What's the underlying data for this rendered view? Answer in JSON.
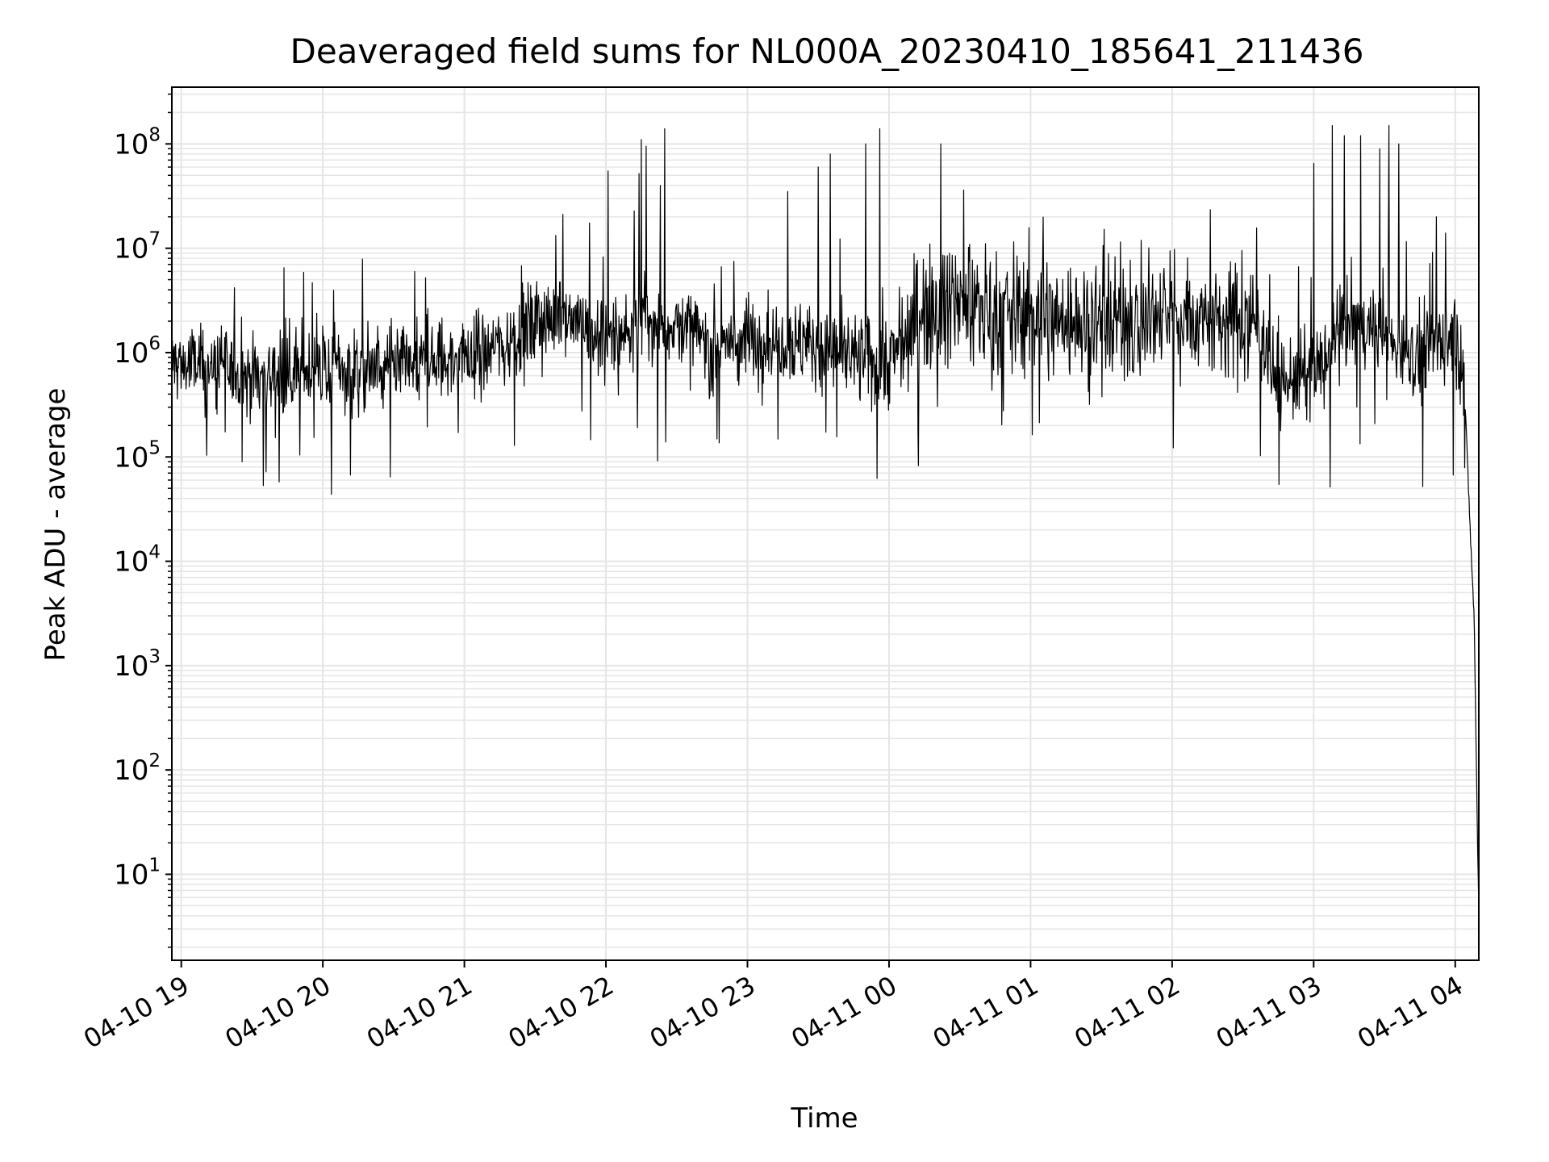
{
  "chart_data": {
    "type": "line",
    "title": "Deaveraged field sums for NL000A_20230410_185641_211436",
    "xlabel": "Time",
    "ylabel": "Peak ADU - average",
    "yscale": "log",
    "ylim": [
      1.5,
      350000000
    ],
    "xlim": [
      "2023-04-10 18:56",
      "2023-04-11 04:10"
    ],
    "grid": true,
    "line_color": "#000000",
    "grid_color": "#e5e5e5",
    "x_ticks": [
      {
        "value": "2023-04-10 19:00",
        "label": "04-10 19"
      },
      {
        "value": "2023-04-10 20:00",
        "label": "04-10 20"
      },
      {
        "value": "2023-04-10 21:00",
        "label": "04-10 21"
      },
      {
        "value": "2023-04-10 22:00",
        "label": "04-10 22"
      },
      {
        "value": "2023-04-10 23:00",
        "label": "04-10 23"
      },
      {
        "value": "2023-04-11 00:00",
        "label": "04-11 00"
      },
      {
        "value": "2023-04-11 01:00",
        "label": "04-11 01"
      },
      {
        "value": "2023-04-11 02:00",
        "label": "04-11 02"
      },
      {
        "value": "2023-04-11 03:00",
        "label": "04-11 03"
      },
      {
        "value": "2023-04-11 04:00",
        "label": "04-11 04"
      }
    ],
    "y_ticks": [
      {
        "value": 10,
        "base": "10",
        "exp": "1"
      },
      {
        "value": 100,
        "base": "10",
        "exp": "2"
      },
      {
        "value": 1000,
        "base": "10",
        "exp": "3"
      },
      {
        "value": 10000,
        "base": "10",
        "exp": "4"
      },
      {
        "value": 100000,
        "base": "10",
        "exp": "5"
      },
      {
        "value": 1000000,
        "base": "10",
        "exp": "6"
      },
      {
        "value": 10000000,
        "base": "10",
        "exp": "7"
      },
      {
        "value": 100000000,
        "base": "10",
        "exp": "8"
      }
    ],
    "series": [
      {
        "points": [
          [
            "2023-04-10 18:56",
            800000
          ],
          [
            "2023-04-10 19:15",
            700000
          ],
          [
            "2023-04-10 19:30",
            600000
          ],
          [
            "2023-04-10 19:45",
            650000
          ],
          [
            "2023-04-10 20:00",
            700000
          ],
          [
            "2023-04-10 20:15",
            700000
          ],
          [
            "2023-04-10 20:30",
            650000
          ],
          [
            "2023-04-10 20:45",
            800000
          ],
          [
            "2023-04-10 21:00",
            900000
          ],
          [
            "2023-04-10 21:15",
            1200000
          ],
          [
            "2023-04-10 21:30",
            1800000
          ],
          [
            "2023-04-10 21:45",
            2500000
          ],
          [
            "2023-04-10 22:00",
            1200000
          ],
          [
            "2023-04-10 22:15",
            2000000
          ],
          [
            "2023-04-10 22:30",
            1800000
          ],
          [
            "2023-04-10 22:45",
            1200000
          ],
          [
            "2023-04-10 23:00",
            1300000
          ],
          [
            "2023-04-10 23:15",
            1400000
          ],
          [
            "2023-04-10 23:30",
            1100000
          ],
          [
            "2023-04-10 23:45",
            900000
          ],
          [
            "2023-04-11 00:00",
            800000
          ],
          [
            "2023-04-11 00:15",
            3000000
          ],
          [
            "2023-04-11 00:30",
            3000000
          ],
          [
            "2023-04-11 00:45",
            2500000
          ],
          [
            "2023-04-11 01:00",
            2500000
          ],
          [
            "2023-04-11 01:15",
            2000000
          ],
          [
            "2023-04-11 01:30",
            2200000
          ],
          [
            "2023-04-11 01:45",
            2000000
          ],
          [
            "2023-04-11 02:00",
            2300000
          ],
          [
            "2023-04-11 02:15",
            2000000
          ],
          [
            "2023-04-11 02:30",
            2000000
          ],
          [
            "2023-04-11 02:37",
            2000000
          ],
          [
            "2023-04-11 02:45",
            500000
          ],
          [
            "2023-04-11 03:00",
            600000
          ],
          [
            "2023-04-11 03:15",
            2000000
          ],
          [
            "2023-04-11 03:30",
            1500000
          ],
          [
            "2023-04-11 03:45",
            900000
          ],
          [
            "2023-04-11 04:00",
            1500000
          ],
          [
            "2023-04-11 04:04",
            400000
          ],
          [
            "2023-04-11 04:06",
            30000
          ],
          [
            "2023-04-11 04:08",
            3000
          ],
          [
            "2023-04-11 04:09",
            100
          ],
          [
            "2023-04-11 04:10",
            4
          ]
        ],
        "spikes": [
          [
            "2023-04-10 22:01",
            55000000
          ],
          [
            "2023-04-10 22:14",
            52000000
          ],
          [
            "2023-04-10 22:15",
            110000000
          ],
          [
            "2023-04-10 22:17",
            95000000
          ],
          [
            "2023-04-10 22:23",
            40000000
          ],
          [
            "2023-04-10 22:25",
            140000000
          ],
          [
            "2023-04-10 23:17",
            35000000
          ],
          [
            "2023-04-10 23:30",
            60000000
          ],
          [
            "2023-04-10 23:35",
            80000000
          ],
          [
            "2023-04-10 23:50",
            100000000
          ],
          [
            "2023-04-10 23:56",
            140000000
          ],
          [
            "2023-04-11 00:22",
            100000000
          ],
          [
            "2023-04-11 03:00",
            65000000
          ],
          [
            "2023-04-11 03:08",
            150000000
          ],
          [
            "2023-04-11 03:13",
            120000000
          ],
          [
            "2023-04-11 03:20",
            120000000
          ],
          [
            "2023-04-11 03:28",
            90000000
          ],
          [
            "2023-04-11 03:32",
            150000000
          ],
          [
            "2023-04-11 03:36",
            100000000
          ],
          [
            "2023-04-11 03:52",
            20000000
          ],
          [
            "2023-04-11 03:56",
            14000000
          ]
        ]
      }
    ]
  }
}
